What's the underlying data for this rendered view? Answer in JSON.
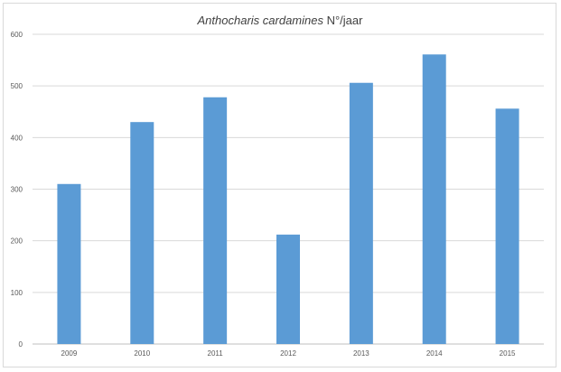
{
  "chart_data": {
    "type": "bar",
    "title_italic": "Anthocharis cardamines",
    "title_rest": " N°/jaar",
    "xlabel": "",
    "ylabel": "",
    "categories": [
      "2009",
      "2010",
      "2011",
      "2012",
      "2013",
      "2014",
      "2015"
    ],
    "series": [
      {
        "values": [
          310,
          430,
          478,
          212,
          506,
          561,
          456
        ],
        "color": "#5b9bd5"
      }
    ],
    "ylim": [
      0,
      600
    ],
    "yticks": [
      0,
      100,
      200,
      300,
      400,
      500,
      600
    ],
    "grid": true,
    "legend": "none"
  }
}
